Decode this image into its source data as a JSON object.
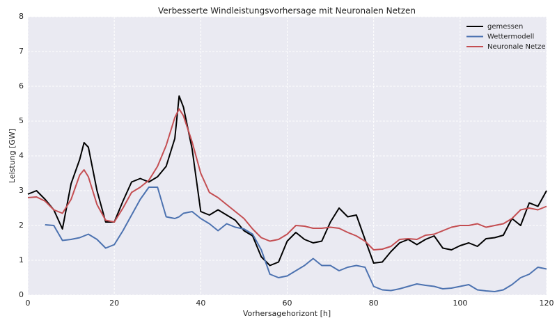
{
  "chart_data": {
    "type": "line",
    "title": "Verbesserte Windleistungsvorhersage mit Neuronalen Netzen",
    "xlabel": "Vorhersagehorizont [h]",
    "ylabel": "Leistung [GW]",
    "x": [
      0,
      2,
      4,
      6,
      8,
      10,
      12,
      13,
      14,
      16,
      18,
      20,
      22,
      24,
      26,
      28,
      30,
      32,
      34,
      35,
      36,
      38,
      40,
      42,
      44,
      46,
      48,
      50,
      52,
      54,
      56,
      58,
      60,
      62,
      64,
      66,
      68,
      70,
      72,
      74,
      76,
      78,
      80,
      82,
      84,
      86,
      88,
      90,
      92,
      94,
      96,
      98,
      100,
      102,
      104,
      106,
      108,
      110,
      112,
      114,
      116,
      118,
      120
    ],
    "series": [
      {
        "name": "gemessen",
        "color": "#000000",
        "values": [
          2.9,
          3.0,
          2.75,
          2.45,
          1.9,
          3.2,
          3.9,
          4.38,
          4.25,
          3.0,
          2.1,
          2.1,
          2.7,
          3.25,
          3.35,
          3.25,
          3.4,
          3.7,
          4.5,
          5.72,
          5.4,
          4.2,
          2.4,
          2.3,
          2.45,
          2.3,
          2.15,
          1.85,
          1.7,
          1.1,
          0.85,
          0.95,
          1.55,
          1.8,
          1.6,
          1.5,
          1.55,
          2.1,
          2.5,
          2.25,
          2.3,
          1.6,
          0.92,
          0.95,
          1.25,
          1.5,
          1.6,
          1.45,
          1.6,
          1.7,
          1.35,
          1.3,
          1.42,
          1.5,
          1.4,
          1.62,
          1.65,
          1.72,
          2.2,
          2.0,
          2.65,
          2.55,
          3.0
        ]
      },
      {
        "name": "Wettermodell",
        "color": "#4c72b0",
        "values": [
          null,
          null,
          2.02,
          2.0,
          1.57,
          1.6,
          1.65,
          1.7,
          1.75,
          1.6,
          1.35,
          1.45,
          1.85,
          2.3,
          2.75,
          3.1,
          3.1,
          2.25,
          2.2,
          2.25,
          2.35,
          2.4,
          2.2,
          2.05,
          1.85,
          2.05,
          1.95,
          1.9,
          1.75,
          1.3,
          0.6,
          0.5,
          0.55,
          0.7,
          0.85,
          1.05,
          0.85,
          0.85,
          0.7,
          0.8,
          0.85,
          0.8,
          0.25,
          0.15,
          0.13,
          0.18,
          0.25,
          0.32,
          0.28,
          0.25,
          0.18,
          0.2,
          0.25,
          0.3,
          0.15,
          0.12,
          0.1,
          0.15,
          0.3,
          0.5,
          0.6,
          0.8,
          0.75
        ]
      },
      {
        "name": "Neuronale Netze",
        "color": "#c44e52",
        "values": [
          2.8,
          2.82,
          2.7,
          2.45,
          2.35,
          2.75,
          3.45,
          3.6,
          3.4,
          2.6,
          2.15,
          2.1,
          2.5,
          2.95,
          3.1,
          3.3,
          3.7,
          4.3,
          5.1,
          5.35,
          5.15,
          4.4,
          3.5,
          2.95,
          2.8,
          2.6,
          2.4,
          2.2,
          1.9,
          1.65,
          1.55,
          1.6,
          1.75,
          2.0,
          1.98,
          1.92,
          1.92,
          1.95,
          1.92,
          1.8,
          1.7,
          1.55,
          1.3,
          1.32,
          1.4,
          1.6,
          1.62,
          1.6,
          1.72,
          1.75,
          1.85,
          1.95,
          2.0,
          2.0,
          2.05,
          1.95,
          2.0,
          2.05,
          2.2,
          2.45,
          2.5,
          2.45,
          2.55
        ]
      }
    ],
    "xlim": [
      0,
      120
    ],
    "xticks": [
      0,
      20,
      40,
      60,
      80,
      100,
      120
    ],
    "ylim": [
      0,
      8
    ],
    "yticks": [
      0,
      1,
      2,
      3,
      4,
      5,
      6,
      7,
      8
    ],
    "grid": true,
    "legend": "upper right"
  }
}
